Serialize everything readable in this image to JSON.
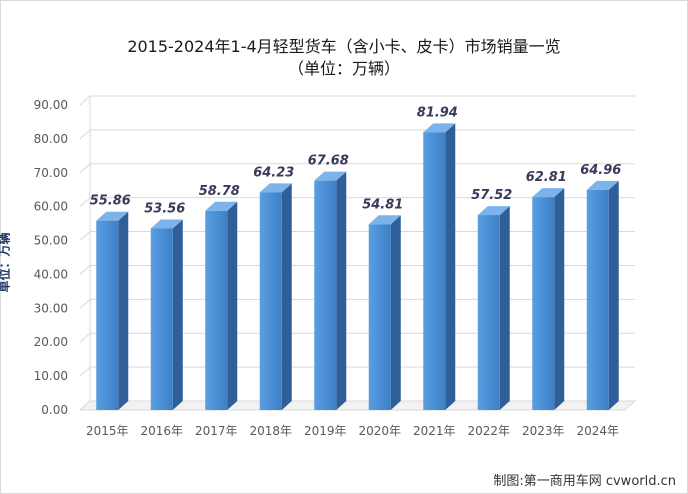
{
  "chart_data": {
    "type": "bar",
    "title_line1": "2015-2024年1-4月轻型货车（含小卡、皮卡）市场销量一览",
    "title_line2": "（单位：万辆）",
    "ylabel": "单位：万辆",
    "xlabel": "",
    "categories": [
      "2015年",
      "2016年",
      "2017年",
      "2018年",
      "2019年",
      "2020年",
      "2021年",
      "2022年",
      "2023年",
      "2024年"
    ],
    "values": [
      55.86,
      53.56,
      58.78,
      64.23,
      67.68,
      54.81,
      81.94,
      57.52,
      62.81,
      64.96
    ],
    "value_labels": [
      "55.86",
      "53.56",
      "58.78",
      "64.23",
      "67.68",
      "54.81",
      "81.94",
      "57.52",
      "62.81",
      "64.96"
    ],
    "ylim": [
      0,
      90
    ],
    "yticks": [
      "0.00",
      "10.00",
      "20.00",
      "30.00",
      "40.00",
      "50.00",
      "60.00",
      "70.00",
      "80.00",
      "90.00"
    ],
    "bar_color": "#4a8fd6",
    "grid": true,
    "legend": "none"
  },
  "credit": "制图:第一商用车网 cvworld.cn"
}
